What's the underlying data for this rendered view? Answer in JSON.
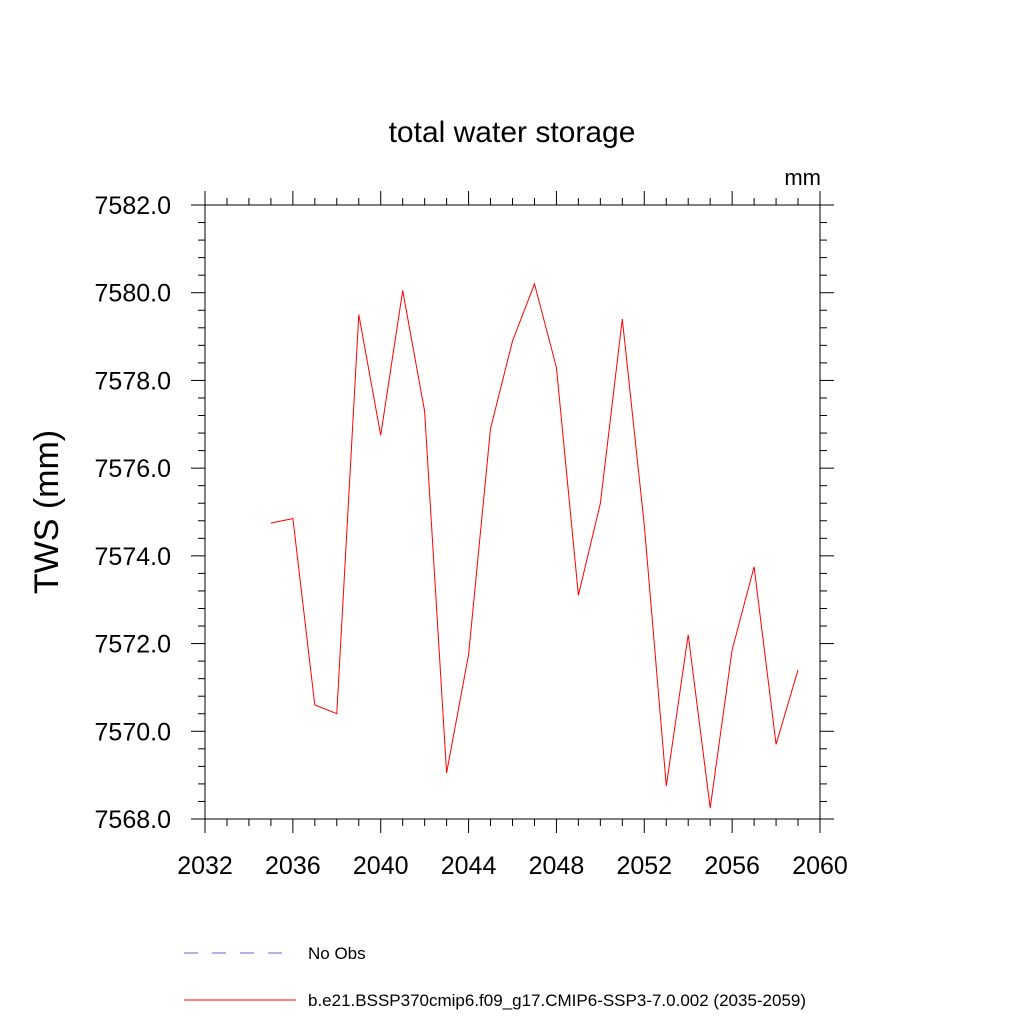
{
  "chart_data": {
    "type": "line",
    "title": "total water storage",
    "units_label": "mm",
    "ylabel": "TWS  (mm)",
    "xlabel": "",
    "xlim": [
      2032,
      2060
    ],
    "ylim": [
      7568.0,
      7582.0
    ],
    "xticks": [
      2032,
      2036,
      2040,
      2044,
      2048,
      2052,
      2056,
      2060
    ],
    "xtick_labels": [
      "2032",
      "2036",
      "2040",
      "2044",
      "2048",
      "2052",
      "2056",
      "2060"
    ],
    "yticks": [
      7568.0,
      7570.0,
      7572.0,
      7574.0,
      7576.0,
      7578.0,
      7580.0,
      7582.0
    ],
    "ytick_labels": [
      "7568.0",
      "7570.0",
      "7572.0",
      "7574.0",
      "7576.0",
      "7578.0",
      "7580.0",
      "7582.0"
    ],
    "x_minor_step": 1,
    "y_minor_step": 0.4,
    "grid": false,
    "series": [
      {
        "name": "b.e21.BSSP370cmip6.f09_g17.CMIP6-SSP3-7.0.002 (2035-2059)",
        "color": "#ff0000",
        "dash": "solid",
        "x": [
          2035,
          2036,
          2037,
          2038,
          2039,
          2040,
          2041,
          2042,
          2043,
          2044,
          2045,
          2046,
          2047,
          2048,
          2049,
          2050,
          2051,
          2052,
          2053,
          2054,
          2055,
          2056,
          2057,
          2058,
          2059
        ],
        "values": [
          7574.75,
          7574.85,
          7570.6,
          7570.4,
          7579.5,
          7576.75,
          7580.05,
          7577.3,
          7569.05,
          7571.75,
          7576.9,
          7578.9,
          7580.2,
          7578.3,
          7573.1,
          7575.2,
          7579.4,
          7574.7,
          7568.75,
          7572.2,
          7568.25,
          7571.85,
          7573.75,
          7569.7,
          7571.4
        ]
      }
    ],
    "legend": [
      {
        "label": "No Obs",
        "color": "#6666cc",
        "dash": "dashed"
      },
      {
        "label": "b.e21.BSSP370cmip6.f09_g17.CMIP6-SSP3-7.0.002 (2035-2059)",
        "color": "#ff0000",
        "dash": "solid"
      }
    ],
    "legend_position": "bottom"
  }
}
